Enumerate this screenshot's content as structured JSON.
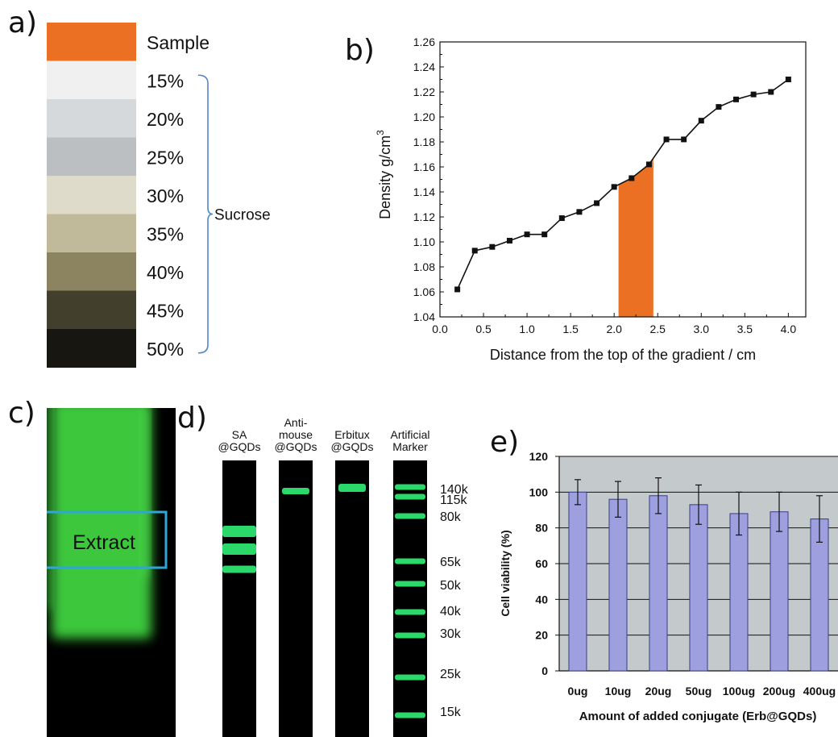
{
  "panel_labels": {
    "a": "a)",
    "b": "b)",
    "c": "c)",
    "d": "d)",
    "e": "e)"
  },
  "panel_a": {
    "swatches": [
      {
        "label": "Sample",
        "color": "#ec7024"
      },
      {
        "label": "15%",
        "color": "#f0f0f0"
      },
      {
        "label": "20%",
        "color": "#d6d9db"
      },
      {
        "label": "25%",
        "color": "#bcbfc1"
      },
      {
        "label": "30%",
        "color": "#dedbca"
      },
      {
        "label": "35%",
        "color": "#c0b99a"
      },
      {
        "label": "40%",
        "color": "#8c8460"
      },
      {
        "label": "45%",
        "color": "#42402d"
      },
      {
        "label": "50%",
        "color": "#171610"
      }
    ],
    "bracket_label": "Sucrose",
    "bracket_color": "#4f86c6"
  },
  "chart_data": [
    {
      "panel": "b",
      "type": "line",
      "xlabel": "Distance from the top of the gradient / cm",
      "ylabel": "Density g/cm",
      "ylabel_superscript": "3",
      "xlim": [
        0.0,
        4.2
      ],
      "ylim": [
        1.04,
        1.26
      ],
      "xticks": [
        "0.0",
        "0.5",
        "1.0",
        "1.5",
        "2.0",
        "2.5",
        "3.0",
        "3.5",
        "4.0"
      ],
      "yticks": [
        "1.04",
        "1.06",
        "1.08",
        "1.10",
        "1.12",
        "1.14",
        "1.16",
        "1.18",
        "1.20",
        "1.22",
        "1.24",
        "1.26"
      ],
      "x": [
        0.2,
        0.4,
        0.6,
        0.8,
        1.0,
        1.2,
        1.4,
        1.6,
        1.8,
        2.0,
        2.2,
        2.4,
        2.6,
        2.8,
        3.0,
        3.2,
        3.4,
        3.6,
        3.8,
        4.0
      ],
      "y": [
        1.062,
        1.093,
        1.096,
        1.101,
        1.106,
        1.106,
        1.119,
        1.124,
        1.131,
        1.144,
        1.151,
        1.162,
        1.182,
        1.182,
        1.197,
        1.208,
        1.214,
        1.218,
        1.22,
        1.23
      ],
      "highlight": {
        "x_range": [
          2.05,
          2.45
        ],
        "color": "#ec7024"
      }
    },
    {
      "panel": "e",
      "type": "bar",
      "categories": [
        "0ug",
        "10ug",
        "20ug",
        "50ug",
        "100ug",
        "200ug",
        "400ug"
      ],
      "values": [
        100,
        96,
        98,
        93,
        88,
        89,
        85
      ],
      "errors": [
        7,
        10,
        10,
        11,
        12,
        11,
        13
      ],
      "ylim": [
        0,
        120
      ],
      "yticks": [
        "0",
        "20",
        "40",
        "60",
        "80",
        "100",
        "120"
      ],
      "ylabel": "Cell viability (%)",
      "xlabel": "Amount of added conjugate (Erb@GQDs)",
      "bar_color": "#9d9fde",
      "plot_bg": "#c4c9cb",
      "grid": true
    }
  ],
  "panel_c": {
    "box_label": "Extract",
    "box_color": "#2ea7d8",
    "band_color": "#3fd23f"
  },
  "panel_d": {
    "lanes": [
      {
        "title": [
          "SA",
          "@GQDs"
        ],
        "bands": [
          0.15,
          0.22,
          0.3
        ]
      },
      {
        "title": [
          "Anti-",
          "mouse",
          "@GQDs"
        ],
        "bands": [
          0.6
        ]
      },
      {
        "title": [
          "Erbitux",
          "@GQDs"
        ],
        "bands": [
          0.65
        ]
      },
      {
        "title": [
          "Artificial",
          "Marker"
        ],
        "bands": [
          0.7,
          0.6,
          0.5,
          0.4,
          0.3,
          0.2,
          0.1,
          0.05,
          0.02,
          0.01
        ]
      }
    ],
    "marker_labels": [
      "140k",
      "115k",
      "80k",
      "65k",
      "50k",
      "40k",
      "30k",
      "25k",
      "15k"
    ],
    "band_color": "#2bd86a"
  }
}
